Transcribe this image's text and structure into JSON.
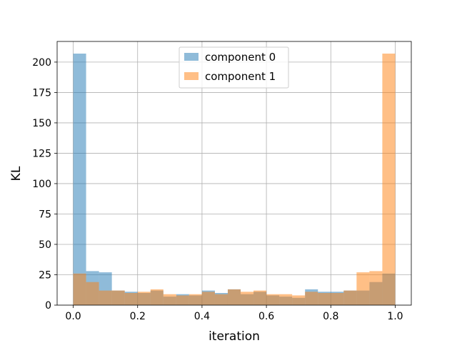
{
  "chart_data": {
    "type": "bar",
    "subtype": "overlapping-histogram",
    "xlabel": "iteration",
    "ylabel": "KL",
    "xlim": [
      -0.05,
      1.05
    ],
    "ylim": [
      0,
      217
    ],
    "bins": 25,
    "bin_range": [
      0,
      1
    ],
    "xticks": [
      0.0,
      0.2,
      0.4,
      0.6,
      0.8,
      1.0
    ],
    "xtick_labels": [
      "0.0",
      "0.2",
      "0.4",
      "0.6",
      "0.8",
      "1.0"
    ],
    "yticks": [
      0,
      25,
      50,
      75,
      100,
      125,
      150,
      175,
      200
    ],
    "ytick_labels": [
      "0",
      "25",
      "50",
      "75",
      "100",
      "125",
      "150",
      "175",
      "200"
    ],
    "grid": true,
    "legend_position": "top-center",
    "series": [
      {
        "name": "component 0",
        "color": "#1f77b4",
        "alpha": 0.5,
        "values": [
          207,
          28,
          27,
          12,
          11,
          10,
          12,
          7,
          9,
          8,
          12,
          10,
          13,
          9,
          11,
          8,
          7,
          6,
          13,
          11,
          11,
          12,
          12,
          19,
          26
        ]
      },
      {
        "name": "component 1",
        "color": "#ff7f0e",
        "alpha": 0.5,
        "values": [
          26,
          19,
          12,
          12,
          10,
          11,
          13,
          9,
          8,
          9,
          11,
          9,
          13,
          11,
          12,
          9,
          9,
          8,
          11,
          10,
          10,
          12,
          27,
          28,
          207
        ]
      }
    ]
  }
}
